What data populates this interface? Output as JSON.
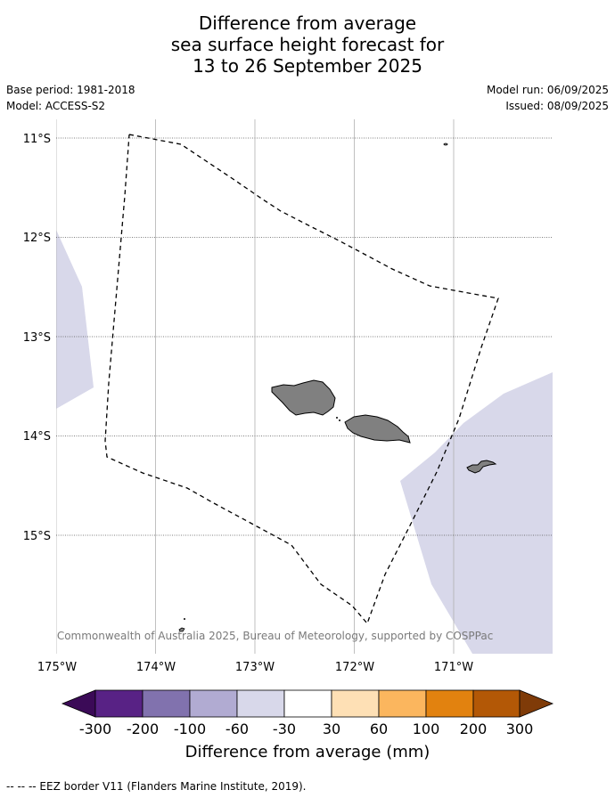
{
  "title": {
    "line1": "Difference from average",
    "line2": "sea surface height forecast for",
    "line3": "13 to 26 September 2025"
  },
  "meta": {
    "base_period": "Base period: 1981-2018",
    "model": "Model: ACCESS-S2",
    "model_run": "Model run: 06/09/2025",
    "issued": "Issued: 08/09/2025"
  },
  "map": {
    "lat_labels": [
      "11°S",
      "12°S",
      "13°S",
      "14°S",
      "15°S"
    ],
    "lon_labels": [
      "175°W",
      "174°W",
      "173°W",
      "172°W",
      "171°W"
    ],
    "copyright": "© Commonwealth of Australia 2025, Bureau of Meteorology, supported by COSPPac",
    "land_color": "#808080",
    "ocean_anomaly_color": "#d8d8ea",
    "eez_line": "dashed"
  },
  "colorbar": {
    "labels": [
      "-300",
      "-200",
      "-100",
      "-60",
      "-30",
      "30",
      "60",
      "100",
      "200",
      "300"
    ],
    "colors": [
      "#3b0a57",
      "#582285",
      "#8172ae",
      "#b1abd2",
      "#d8d8ea",
      "#ffffff",
      "#fee0b5",
      "#fbb65e",
      "#e2820f",
      "#b35806",
      "#7f3b08"
    ],
    "title": "Difference from average (mm)"
  },
  "footer": {
    "legend": "--  --  -- EEZ border V11 (Flanders Marine Institute, 2019)."
  }
}
